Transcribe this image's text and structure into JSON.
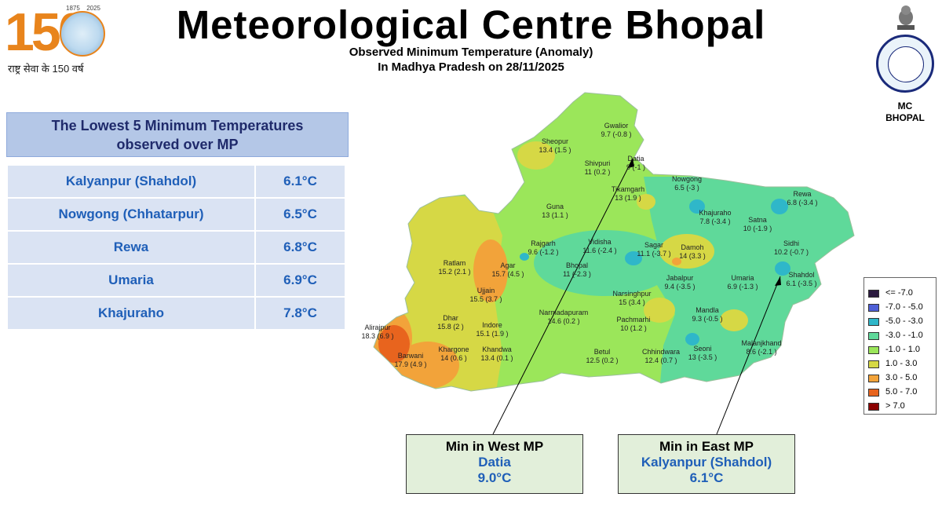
{
  "header": {
    "title": "Meteorological Centre Bhopal",
    "subtitle_line1": "Observed Minimum Temperature (Anomaly)",
    "subtitle_line2": "In Madhya Pradesh on 28/11/2025"
  },
  "logo_150": {
    "number": "150",
    "year_start": "1875",
    "year_end": "2025",
    "tagline": "राष्ट्र सेवा के 150 वर्ष"
  },
  "emblem": {
    "label_line1": "MC",
    "label_line2": "BHOPAL"
  },
  "lowest_panel": {
    "heading_line1": "The Lowest 5 Minimum Temperatures",
    "heading_line2": "observed over MP",
    "rows": [
      {
        "station": "Kalyanpur (Shahdol)",
        "temp": "6.1°C"
      },
      {
        "station": "Nowgong (Chhatarpur)",
        "temp": "6.5°C"
      },
      {
        "station": "Rewa",
        "temp": "6.8°C"
      },
      {
        "station": "Umaria",
        "temp": "6.9°C"
      },
      {
        "station": "Khajuraho",
        "temp": "7.8°C"
      }
    ]
  },
  "stations": [
    {
      "name": "Gwalior",
      "value": "9.7 (-0.8 )"
    },
    {
      "name": "Sheopur",
      "value": "13.4 (1.5 )"
    },
    {
      "name": "Datia",
      "value": "9 (-1 )"
    },
    {
      "name": "Shivpuri",
      "value": "11 (0.2 )"
    },
    {
      "name": "Nowgong",
      "value": "6.5 (-3 )"
    },
    {
      "name": "Tikamgarh",
      "value": "13 (1.9 )"
    },
    {
      "name": "Rewa",
      "value": "6.8 (-3.4 )"
    },
    {
      "name": "Khajuraho",
      "value": "7.8 (-3.4 )"
    },
    {
      "name": "Satna",
      "value": "10 (-1.9 )"
    },
    {
      "name": "Guna",
      "value": "13 (1.1 )"
    },
    {
      "name": "Rajgarh",
      "value": "9.6 (-1.2 )"
    },
    {
      "name": "Vidisha",
      "value": "11.6 (-2.4 )"
    },
    {
      "name": "Sagar",
      "value": "11.1 (-3.7 )"
    },
    {
      "name": "Damoh",
      "value": "14 (3.3 )"
    },
    {
      "name": "Sidhi",
      "value": "10.2 (-0.7 )"
    },
    {
      "name": "Ratlam",
      "value": "15.2 (2.1 )"
    },
    {
      "name": "Agar",
      "value": "15.7 (4.5 )"
    },
    {
      "name": "Bhopal",
      "value": "11 (-2.3 )"
    },
    {
      "name": "Shahdol",
      "value": "6.1 (-3.5 )"
    },
    {
      "name": "Jabalpur",
      "value": "9.4 (-3.5 )"
    },
    {
      "name": "Umaria",
      "value": "6.9 (-1.3 )"
    },
    {
      "name": "Ujjain",
      "value": "15.5 (3.7 )"
    },
    {
      "name": "Narsinghpur",
      "value": "15 (3.4 )"
    },
    {
      "name": "Dhar",
      "value": "15.8 (2 )"
    },
    {
      "name": "Indore",
      "value": "15.1 (1.9 )"
    },
    {
      "name": "Narmadapuram",
      "value": "14.6 (0.2 )"
    },
    {
      "name": "Mandla",
      "value": "9.3 (-0.5 )"
    },
    {
      "name": "Alirajpur",
      "value": "18.3 (6.9 )"
    },
    {
      "name": "Pachmarhi",
      "value": "10 (1.2 )"
    },
    {
      "name": "Khargone",
      "value": "14 (0.6 )"
    },
    {
      "name": "Khandwa",
      "value": "13.4 (0.1 )"
    },
    {
      "name": "Betul",
      "value": "12.5 (0.2 )"
    },
    {
      "name": "Chhindwara",
      "value": "12.4 (0.7 )"
    },
    {
      "name": "Seoni",
      "value": "13 (-3.5 )"
    },
    {
      "name": "Malanjkhand",
      "value": "8.6 (-2.1 )"
    },
    {
      "name": "Barwani",
      "value": "17.9 (4.9 )"
    }
  ],
  "legend": [
    {
      "label": "<= -7.0",
      "color": "#2b1a3f"
    },
    {
      "label": "-7.0 - -5.0",
      "color": "#4e5fd6"
    },
    {
      "label": "-5.0 - -3.0",
      "color": "#2fb7c9"
    },
    {
      "label": "-3.0 - -1.0",
      "color": "#5fd99a"
    },
    {
      "label": "-1.0 - 1.0",
      "color": "#9be65a"
    },
    {
      "label": "1.0 - 3.0",
      "color": "#d6d845"
    },
    {
      "label": "3.0 - 5.0",
      "color": "#f2a33a"
    },
    {
      "label": "5.0 - 7.0",
      "color": "#e8641e"
    },
    {
      "label": "> 7.0",
      "color": "#8b0000"
    }
  ],
  "callout_west": {
    "heading": "Min in West MP",
    "station": "Datia",
    "temp": "9.0°C"
  },
  "callout_east": {
    "heading": "Min in East MP",
    "station": "Kalyanpur (Shahdol)",
    "temp": "6.1°C"
  }
}
